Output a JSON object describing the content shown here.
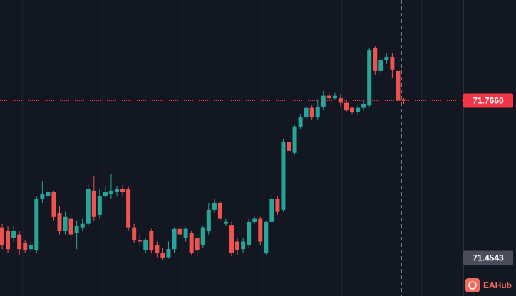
{
  "chart_data": {
    "type": "candlestick",
    "up_color": "#26a69a",
    "down_color": "#ef5350",
    "ylim": [
      71.3781,
      71.9649
    ],
    "open": [
      71.514,
      71.507,
      71.493,
      71.5,
      71.483,
      71.471,
      71.469,
      71.57,
      71.577,
      71.584,
      71.542,
      71.507,
      71.531,
      71.503,
      71.514,
      71.521,
      71.587,
      71.539,
      71.577,
      71.581,
      71.584,
      71.591,
      71.591,
      71.514,
      71.488,
      71.469,
      71.507,
      71.479,
      71.464,
      71.455,
      71.471,
      71.511,
      71.493,
      71.503,
      71.493,
      71.479,
      71.507,
      71.549,
      71.563,
      71.521,
      71.519,
      71.486,
      71.471,
      71.479,
      71.525,
      71.531,
      71.464,
      71.525,
      71.57,
      71.549,
      71.683,
      71.662,
      71.714,
      71.732,
      71.751,
      71.732,
      71.753,
      71.775,
      71.77,
      71.77,
      71.761,
      71.751,
      71.742,
      71.751,
      71.756,
      71.869,
      71.824,
      71.845,
      71.852,
      71.824,
      71.768
    ],
    "high": [
      71.521,
      71.517,
      71.517,
      71.507,
      71.488,
      71.486,
      71.577,
      71.605,
      71.591,
      71.587,
      71.556,
      71.545,
      71.542,
      71.528,
      71.531,
      71.601,
      71.615,
      71.591,
      71.596,
      71.62,
      71.596,
      71.598,
      71.596,
      71.521,
      71.5,
      71.493,
      71.511,
      71.486,
      71.474,
      71.486,
      71.514,
      71.517,
      71.514,
      71.507,
      71.5,
      71.517,
      71.563,
      71.57,
      71.567,
      71.531,
      71.525,
      71.493,
      71.493,
      71.531,
      71.535,
      71.535,
      71.528,
      71.577,
      71.577,
      71.69,
      71.69,
      71.718,
      71.739,
      71.756,
      71.756,
      71.768,
      71.785,
      71.782,
      71.782,
      71.779,
      71.765,
      71.753,
      71.756,
      71.765,
      71.869,
      71.873,
      71.852,
      71.859,
      71.859,
      71.827,
      71.77
    ],
    "low": [
      71.471,
      71.464,
      71.486,
      71.46,
      71.463,
      71.466,
      71.464,
      71.563,
      71.57,
      71.528,
      71.5,
      71.5,
      71.486,
      71.471,
      71.507,
      71.517,
      71.528,
      71.531,
      71.573,
      71.57,
      71.577,
      71.577,
      71.507,
      71.483,
      71.479,
      71.463,
      71.464,
      71.455,
      71.449,
      71.452,
      71.464,
      71.493,
      71.486,
      71.46,
      71.457,
      71.474,
      71.5,
      71.542,
      71.528,
      71.517,
      71.457,
      71.46,
      71.464,
      71.474,
      71.521,
      71.479,
      71.46,
      71.521,
      71.539,
      71.545,
      71.662,
      71.658,
      71.708,
      71.725,
      71.728,
      71.728,
      71.746,
      71.765,
      71.768,
      71.753,
      71.742,
      71.739,
      71.737,
      71.746,
      71.753,
      71.817,
      71.818,
      71.838,
      71.81,
      71.761,
      71.759
    ],
    "close": [
      71.479,
      71.471,
      71.507,
      71.471,
      71.469,
      71.479,
      71.57,
      71.581,
      71.584,
      71.535,
      71.507,
      71.535,
      71.5,
      71.517,
      71.521,
      71.591,
      71.535,
      71.577,
      71.584,
      71.587,
      71.591,
      71.584,
      71.514,
      71.488,
      71.486,
      71.488,
      71.469,
      71.464,
      71.453,
      71.471,
      71.511,
      71.5,
      71.511,
      71.464,
      71.469,
      71.514,
      71.549,
      71.563,
      71.531,
      71.525,
      71.464,
      71.469,
      71.486,
      71.525,
      71.531,
      71.486,
      71.525,
      71.57,
      71.545,
      71.683,
      71.666,
      71.714,
      71.732,
      71.751,
      71.732,
      71.753,
      71.775,
      71.77,
      71.775,
      71.761,
      71.746,
      71.742,
      71.751,
      71.759,
      71.866,
      71.824,
      71.845,
      71.852,
      71.827,
      71.765,
      71.766
    ],
    "price_lines": [
      {
        "value": 71.766,
        "label": "71.7660",
        "color": "#f23645"
      },
      {
        "value": 71.4543,
        "label": "71.4543",
        "color": "#4a4e5a"
      }
    ],
    "watermark": "EAHub"
  }
}
